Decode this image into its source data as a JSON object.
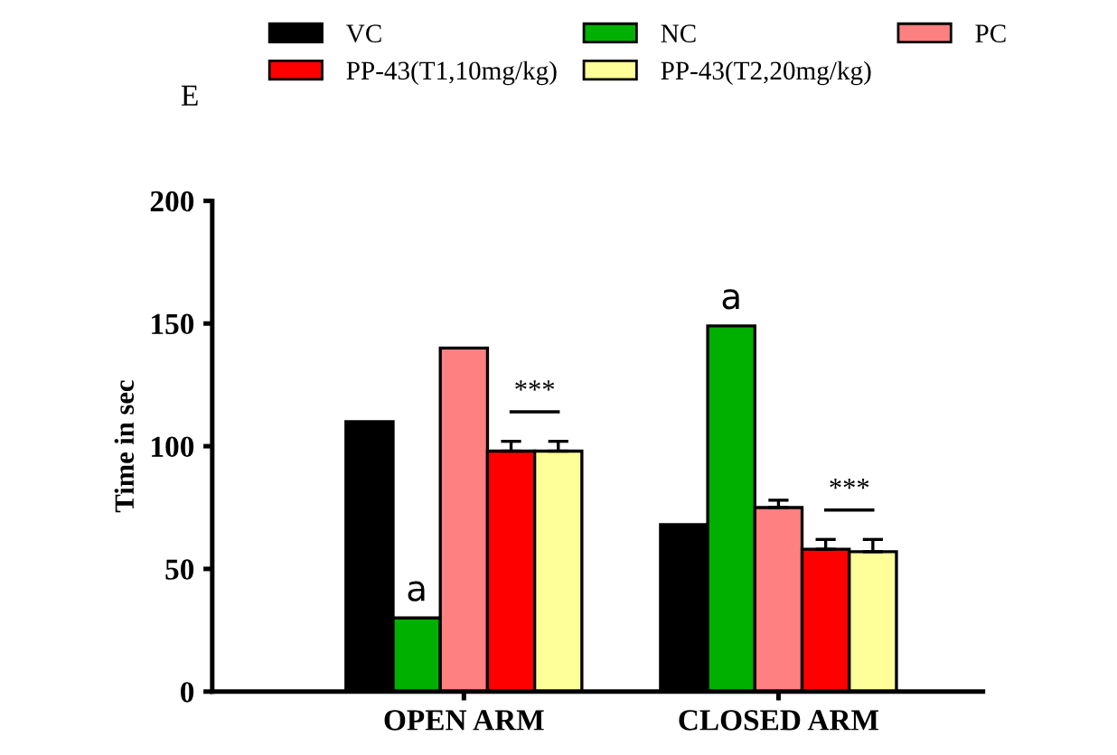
{
  "chart_data": {
    "type": "bar",
    "ylabel": "Time in sec",
    "categories": [
      "OPEN ARM",
      "CLOSED ARM"
    ],
    "series": [
      {
        "name": "VC",
        "color": "#000000",
        "values": [
          110,
          68
        ],
        "errors": [
          null,
          null
        ]
      },
      {
        "name": "NC",
        "color": "#00b000",
        "values": [
          30,
          149
        ],
        "errors": [
          null,
          null
        ]
      },
      {
        "name": "PC",
        "color": "#ff8080",
        "values": [
          140,
          75
        ],
        "errors": [
          null,
          3
        ]
      },
      {
        "name": "PP-43(T1,10mg/kg)",
        "color": "#ff0000",
        "values": [
          98,
          58
        ],
        "errors": [
          4,
          4
        ]
      },
      {
        "name": "PP-43(T2,20mg/kg)",
        "color": "#ffff99",
        "values": [
          98,
          57
        ],
        "errors": [
          4,
          5
        ]
      }
    ],
    "ylim": [
      0,
      200
    ],
    "yticks": [
      0,
      50,
      100,
      150,
      200
    ],
    "grid": false,
    "legend": "top",
    "annotations": [
      "E",
      "a",
      "a",
      "***",
      "***"
    ]
  }
}
